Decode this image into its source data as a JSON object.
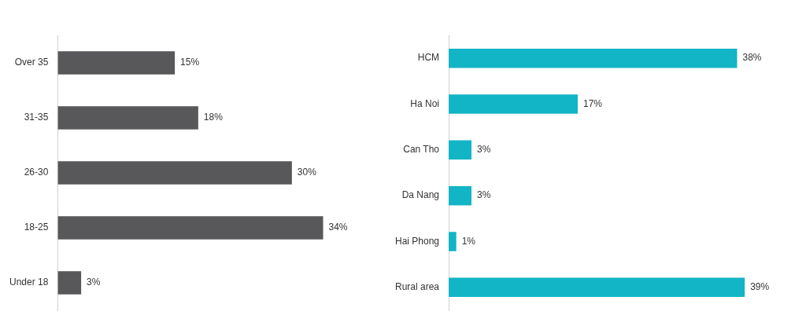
{
  "chart_data": [
    {
      "type": "bar",
      "orientation": "horizontal",
      "categories": [
        "Over 35",
        "31-35",
        "26-30",
        "18-25",
        "Under 18"
      ],
      "values": [
        15,
        18,
        30,
        34,
        3
      ],
      "color": "#58585a",
      "value_labels": [
        "15%",
        "18%",
        "30%",
        "34%",
        "3%"
      ],
      "grid": false,
      "legend": false,
      "tick_labels": "y"
    },
    {
      "type": "bar",
      "orientation": "horizontal",
      "categories": [
        "HCM",
        "Ha Noi",
        "Can Tho",
        "Da Nang",
        "Hai Phong",
        "Rural area"
      ],
      "values": [
        38,
        17,
        3,
        3,
        1,
        39
      ],
      "color": "#12b5c5",
      "value_labels": [
        "38%",
        "17%",
        "3%",
        "3%",
        "1%",
        "39%"
      ],
      "grid": false,
      "legend": false,
      "tick_labels": "y"
    }
  ]
}
